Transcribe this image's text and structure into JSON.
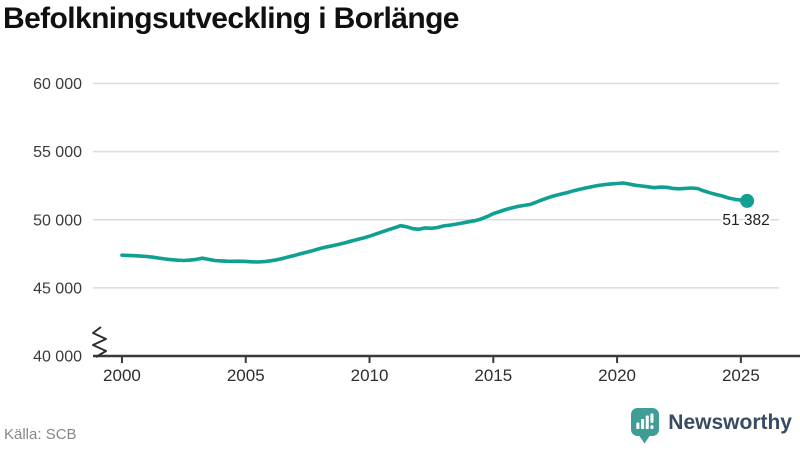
{
  "title": "Befolkningsutveckling i Borlänge",
  "source": "Källa: SCB",
  "branding": {
    "name": "Newsworthy",
    "icon": "bar-chart-speech-bubble-icon",
    "bubble_color": "#3f9d96",
    "text_color": "#394a63"
  },
  "colors": {
    "line": "#0fa092",
    "grid": "#dcdcdc",
    "axis": "#3a3a3a",
    "tick_label": "#3b3b3b",
    "end_label": "#1f1f1f",
    "title": "#101010",
    "source": "#878787"
  },
  "chart_data": {
    "type": "line",
    "title": "Befolkningsutveckling i Borlänge",
    "series_name": "Befolkning i Borlänge",
    "xlabel": "",
    "ylabel": "",
    "grid": true,
    "axis_break": true,
    "ylim": [
      40000,
      60000
    ],
    "xlim": [
      1998.83,
      2026.54
    ],
    "x_ticks": [
      2000,
      2005,
      2010,
      2015,
      2020,
      2025
    ],
    "y_ticks": [
      {
        "value": 60000,
        "label": "60 000"
      },
      {
        "value": 55000,
        "label": "55 000"
      },
      {
        "value": 50000,
        "label": "50 000"
      },
      {
        "value": 45000,
        "label": "45 000"
      },
      {
        "value": 40000,
        "label": "40 000"
      }
    ],
    "end_label": "51 382",
    "end_value": 51382,
    "points": [
      [
        2000.0,
        47400
      ],
      [
        2000.25,
        47385
      ],
      [
        2000.5,
        47365
      ],
      [
        2000.75,
        47335
      ],
      [
        2001.0,
        47300
      ],
      [
        2001.25,
        47250
      ],
      [
        2001.5,
        47185
      ],
      [
        2001.75,
        47120
      ],
      [
        2002.0,
        47070
      ],
      [
        2002.25,
        47030
      ],
      [
        2002.5,
        47010
      ],
      [
        2002.75,
        47040
      ],
      [
        2003.0,
        47090
      ],
      [
        2003.25,
        47180
      ],
      [
        2003.5,
        47090
      ],
      [
        2003.75,
        47010
      ],
      [
        2004.0,
        46980
      ],
      [
        2004.25,
        46960
      ],
      [
        2004.5,
        46950
      ],
      [
        2004.75,
        46960
      ],
      [
        2005.0,
        46940
      ],
      [
        2005.25,
        46915
      ],
      [
        2005.5,
        46900
      ],
      [
        2005.75,
        46930
      ],
      [
        2006.0,
        46990
      ],
      [
        2006.25,
        47060
      ],
      [
        2006.5,
        47160
      ],
      [
        2006.75,
        47280
      ],
      [
        2007.0,
        47400
      ],
      [
        2007.25,
        47520
      ],
      [
        2007.5,
        47630
      ],
      [
        2007.75,
        47760
      ],
      [
        2008.0,
        47890
      ],
      [
        2008.25,
        48000
      ],
      [
        2008.5,
        48090
      ],
      [
        2008.75,
        48190
      ],
      [
        2009.0,
        48300
      ],
      [
        2009.25,
        48430
      ],
      [
        2009.5,
        48550
      ],
      [
        2009.75,
        48660
      ],
      [
        2010.0,
        48790
      ],
      [
        2010.25,
        48950
      ],
      [
        2010.5,
        49110
      ],
      [
        2010.75,
        49260
      ],
      [
        2011.0,
        49400
      ],
      [
        2011.25,
        49560
      ],
      [
        2011.5,
        49480
      ],
      [
        2011.75,
        49340
      ],
      [
        2012.0,
        49300
      ],
      [
        2012.25,
        49400
      ],
      [
        2012.5,
        49370
      ],
      [
        2012.75,
        49430
      ],
      [
        2013.0,
        49550
      ],
      [
        2013.25,
        49610
      ],
      [
        2013.5,
        49680
      ],
      [
        2013.75,
        49760
      ],
      [
        2014.0,
        49850
      ],
      [
        2014.25,
        49930
      ],
      [
        2014.5,
        50050
      ],
      [
        2014.75,
        50230
      ],
      [
        2015.0,
        50450
      ],
      [
        2015.25,
        50600
      ],
      [
        2015.5,
        50750
      ],
      [
        2015.75,
        50870
      ],
      [
        2016.0,
        50980
      ],
      [
        2016.25,
        51050
      ],
      [
        2016.5,
        51130
      ],
      [
        2016.75,
        51300
      ],
      [
        2017.0,
        51480
      ],
      [
        2017.25,
        51640
      ],
      [
        2017.5,
        51780
      ],
      [
        2017.75,
        51890
      ],
      [
        2018.0,
        52000
      ],
      [
        2018.25,
        52130
      ],
      [
        2018.5,
        52240
      ],
      [
        2018.75,
        52340
      ],
      [
        2019.0,
        52430
      ],
      [
        2019.25,
        52520
      ],
      [
        2019.5,
        52580
      ],
      [
        2019.75,
        52630
      ],
      [
        2020.0,
        52660
      ],
      [
        2020.25,
        52700
      ],
      [
        2020.5,
        52620
      ],
      [
        2020.75,
        52530
      ],
      [
        2021.0,
        52480
      ],
      [
        2021.25,
        52420
      ],
      [
        2021.5,
        52350
      ],
      [
        2021.75,
        52400
      ],
      [
        2022.0,
        52380
      ],
      [
        2022.25,
        52300
      ],
      [
        2022.5,
        52270
      ],
      [
        2022.75,
        52300
      ],
      [
        2023.0,
        52330
      ],
      [
        2023.25,
        52290
      ],
      [
        2023.5,
        52120
      ],
      [
        2023.75,
        51980
      ],
      [
        2024.0,
        51850
      ],
      [
        2024.25,
        51740
      ],
      [
        2024.5,
        51600
      ],
      [
        2024.75,
        51500
      ],
      [
        2025.0,
        51440
      ],
      [
        2025.25,
        51382
      ]
    ]
  }
}
